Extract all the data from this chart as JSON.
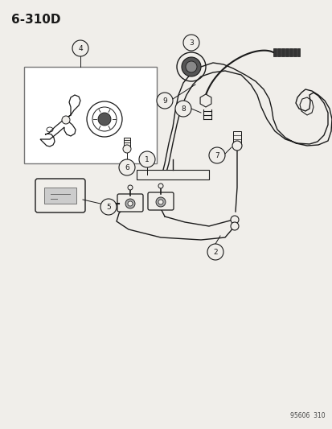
{
  "title": "6-310D",
  "footer": "95606  310",
  "bg_color": "#f0eeea",
  "line_color": "#1a1a1a",
  "fig_w": 4.14,
  "fig_h": 5.33,
  "dpi": 100
}
